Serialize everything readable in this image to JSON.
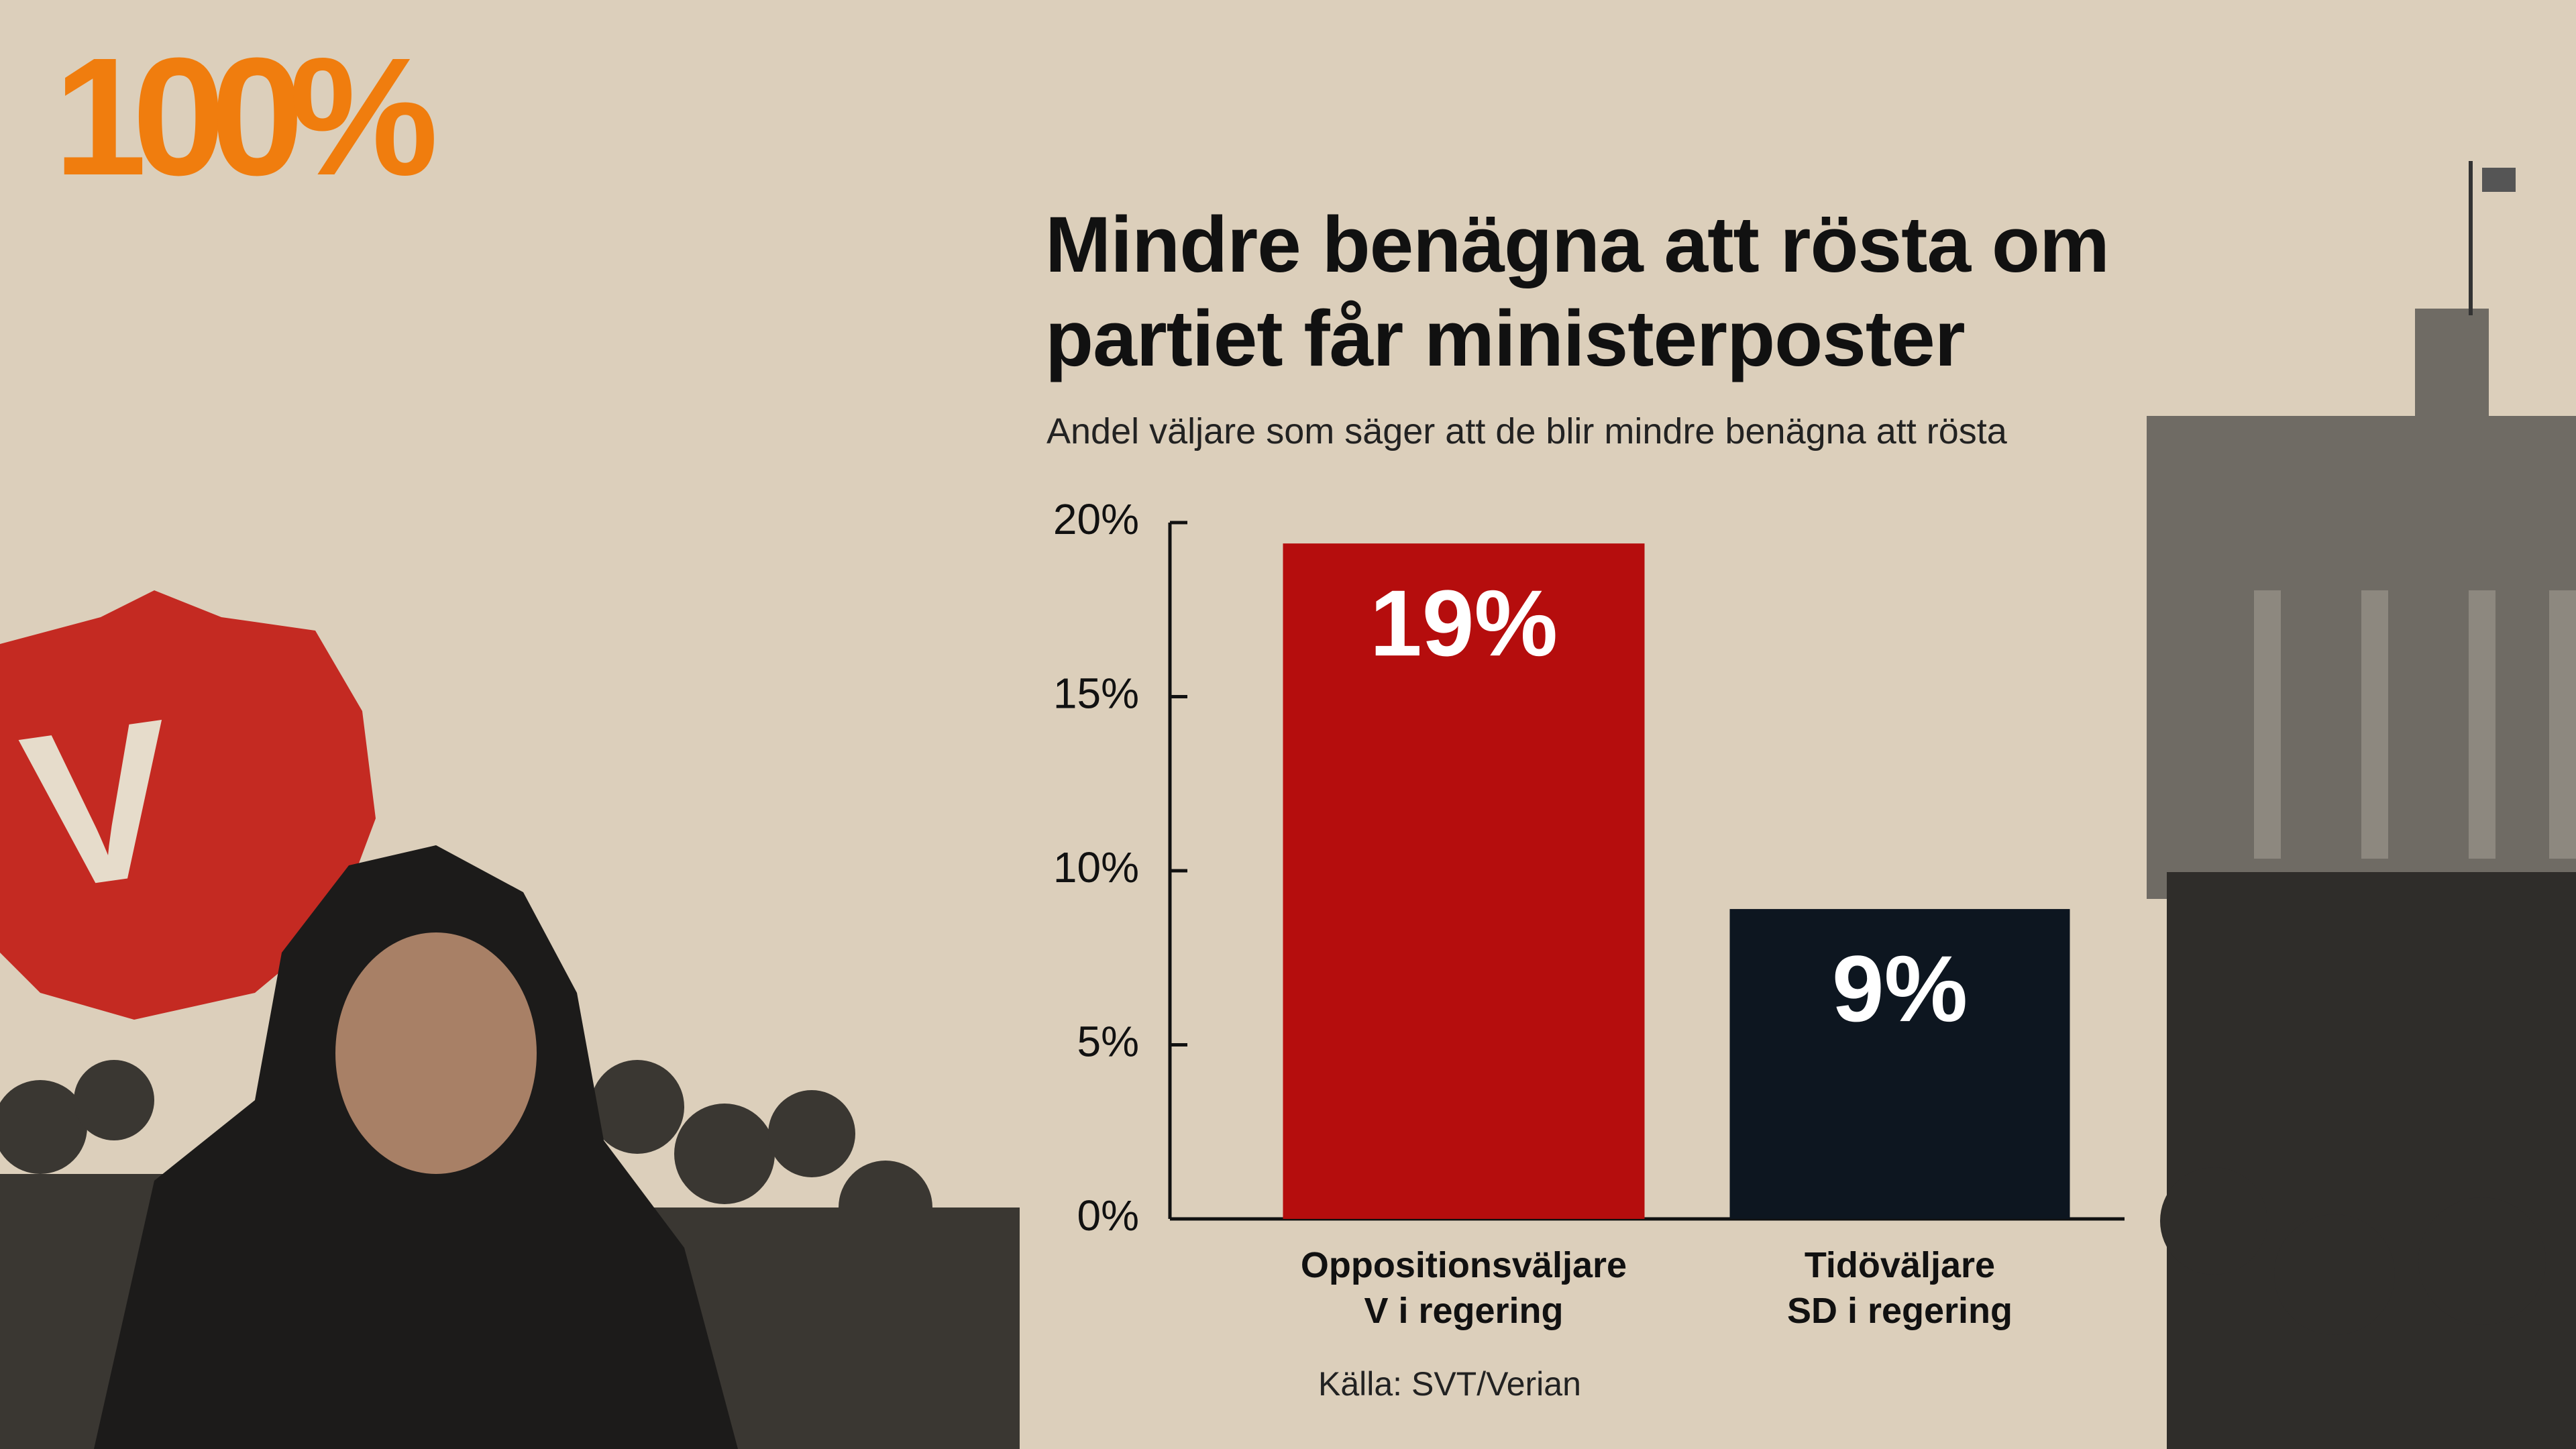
{
  "logo": "100%",
  "badge": "V",
  "chart_data": {
    "type": "bar",
    "title": "Mindre benägna att rösta om partiet får ministerposter",
    "subtitle": "Andel väljare som säger att de blir mindre benägna att rösta",
    "categories": [
      "Oppositionsväljare\nV i regering",
      "Tidöväljare\nSD i regering"
    ],
    "values": [
      19.4,
      8.9
    ],
    "value_labels": [
      "19%",
      "9%"
    ],
    "colors": [
      "#b50d0d",
      "#0d1620"
    ],
    "ylim": [
      0,
      20
    ],
    "yticks": [
      {
        "value": 0,
        "label": "0%"
      },
      {
        "value": 5,
        "label": "5%"
      },
      {
        "value": 10,
        "label": "10%"
      },
      {
        "value": 15,
        "label": "15%"
      },
      {
        "value": 20,
        "label": "20%"
      }
    ],
    "source": "Källa: SVT/Verian"
  }
}
